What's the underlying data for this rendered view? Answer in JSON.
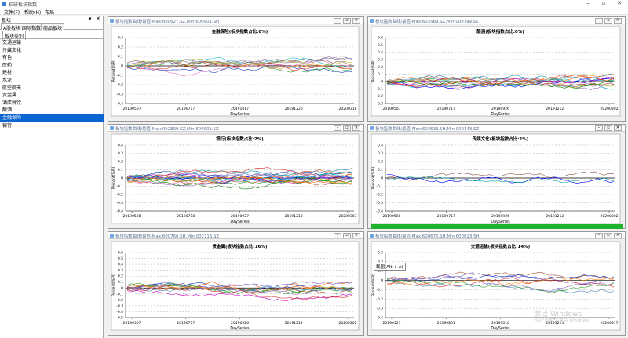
{
  "app": {
    "title": "招研板块指数"
  },
  "menu": [
    "文件(F)",
    "帮助(H)",
    "布局"
  ],
  "left_panel": {
    "caption": "板块",
    "tabs": [
      "A股板块",
      "国际指数",
      "商品板块"
    ],
    "subtab": "板块类别",
    "items": [
      "交通运输",
      "传媒文化",
      "有色",
      "医药",
      "建材",
      "水泥",
      "航空航天",
      "贵金属",
      "酒店餐饮",
      "酿酒",
      "金融保险",
      "银行"
    ],
    "selected_index": 10
  },
  "charts": [
    {
      "window_title": "板块指数曲线/最值-Max:600627.SZ,Min:600901.SH",
      "chart_data": {
        "type": "line",
        "title": "金融保险(板块指数占比:0%)",
        "xlabel": "DaySeries",
        "ylabel": "Percent(%PI)",
        "xticks": [
          "20190507",
          "20190717",
          "20191017",
          "20191226",
          "20200318"
        ],
        "yticks": [
          "0.3",
          "0.2",
          "0.1",
          "0",
          "-0.1",
          "-0.2",
          "-0.3",
          "-0.4"
        ],
        "ylim": [
          -0.4,
          0.3
        ],
        "series_count": 10,
        "seed": 11
      }
    },
    {
      "window_title": "板块指数曲线/最值-Max:603589.SZ,Min:000799.SZ",
      "chart_data": {
        "type": "line",
        "title": "酿酒(板块指数占比:0%)",
        "xlabel": "DaySeries",
        "ylabel": "Percent(%PI)",
        "xticks": [
          "20190507",
          "20190717",
          "20190926",
          "20191212",
          "20200302"
        ],
        "yticks": [
          "0.6",
          "0.5",
          "0.4",
          "0.3",
          "0.2",
          "0.1",
          "0",
          "-0.1",
          "-0.2",
          "-0.3"
        ],
        "ylim": [
          -0.3,
          0.6
        ],
        "series_count": 14,
        "seed": 23
      }
    },
    {
      "window_title": "板块指数曲线/最值-Max:002839.SZ,Min:600901.SZ",
      "chart_data": {
        "type": "line",
        "title": "银行(板块指数占比:2%)",
        "xlabel": "DaySeries",
        "ylabel": "Percent(%PI)",
        "xticks": [
          "20190508",
          "20190718",
          "20190927",
          "20191213",
          "20200303"
        ],
        "yticks": [
          "0.4",
          "0.3",
          "0.2",
          "0.1",
          "0",
          "-0.1",
          "-0.2",
          "-0.3",
          "-0.4"
        ],
        "ylim": [
          -0.4,
          0.4
        ],
        "series_count": 18,
        "seed": 37
      }
    },
    {
      "window_title": "板块指数曲线/最值-Max:603533.SH,Min:002143.SZ",
      "chart_data": {
        "type": "line",
        "title": "传媒文化(板块指数占比:2%)",
        "xlabel": "DaySeries",
        "ylabel": "Percent(%PI)",
        "xticks": [
          "20190508",
          "20190717",
          "20190926",
          "20191212",
          "20200302"
        ],
        "yticks": [
          "0.4",
          "0.3",
          "0.2",
          "0.1",
          "0",
          "-0.1",
          "-0.2",
          "-0.3",
          "-0.4"
        ],
        "ylim": [
          -0.4,
          0.4
        ],
        "series_count": 3,
        "seed": 41
      }
    },
    {
      "window_title": "板块指数曲线/最值-Max:600766.SH,Min:002716.SZ",
      "chart_data": {
        "type": "line",
        "title": "贵金属(板块指数占比:16%)",
        "xlabel": "DaySeries",
        "ylabel": "Percent(%PI)",
        "xticks": [
          "20190507",
          "20190717",
          "20190926",
          "20191212",
          "20200302"
        ],
        "yticks": [
          "0.6",
          "0.5",
          "0.4",
          "0.3",
          "0.2",
          "0.1",
          "0",
          "-0.1",
          "-0.2",
          "-0.3",
          "-0.4",
          "-0.5"
        ],
        "ylim": [
          -0.5,
          0.6
        ],
        "series_count": 11,
        "seed": 53
      }
    },
    {
      "window_title": "板块指数曲线/最值-Max:600676.SH,Min:600623.SH",
      "chart_data": {
        "type": "line",
        "title": "交通运输(板块指数占比:14%)",
        "xlabel": "DaySeries",
        "ylabel": "Percent(%PI)",
        "xticks": [
          "20190521",
          "20190801",
          "20191010",
          "20191225",
          "20200317"
        ],
        "yticks": [
          "0.3",
          "0.2",
          "0.1",
          "0",
          "-0.1",
          "-0.2",
          "-0.3",
          "-0.4"
        ],
        "ylim": [
          -0.4,
          0.3
        ],
        "series_count": 8,
        "seed": 67
      }
    }
  ],
  "tooltip": "截图(Alt + A)",
  "watermark": {
    "line1": "激活 Windows",
    "line2": "转到\"设置\"以激活 Windows。"
  },
  "colors": {
    "selection": "#0a64d2",
    "progress": "#1db32d",
    "zero_line": "#000000",
    "grid": "#a0a0a0"
  }
}
